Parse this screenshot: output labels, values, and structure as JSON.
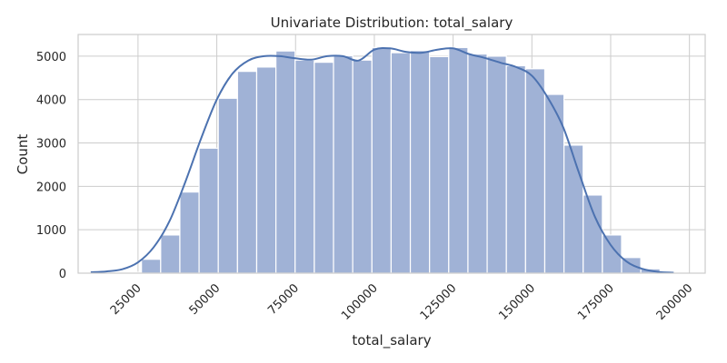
{
  "chart_data": {
    "type": "histogram",
    "title": "Univariate Distribution: total_salary",
    "xlabel": "total_salary",
    "ylabel": "Count",
    "xlim": [
      6000,
      205000
    ],
    "ylim": [
      0,
      5500
    ],
    "xticks": [
      25000,
      50000,
      75000,
      100000,
      125000,
      150000,
      175000,
      200000
    ],
    "xtick_labels": [
      "25000",
      "50000",
      "75000",
      "100000",
      "125000",
      "150000",
      "175000",
      "200000"
    ],
    "yticks": [
      0,
      1000,
      2000,
      3000,
      4000,
      5000
    ],
    "ytick_labels": [
      "0",
      "1000",
      "2000",
      "3000",
      "4000",
      "5000"
    ],
    "grid": true,
    "bar_color": "#a0b2d6",
    "line_color": "#4c72b0",
    "bins": {
      "edges": [
        20000,
        26095,
        32190,
        38285,
        44380,
        50475,
        56570,
        62665,
        68760,
        74855,
        80950,
        87045,
        93140,
        99235,
        105330,
        111425,
        117520,
        123615,
        129710,
        135805,
        141900,
        147995,
        154090,
        160185,
        166280,
        172375,
        178470,
        184565,
        190660
      ],
      "counts": [
        20,
        320,
        880,
        1870,
        2880,
        4030,
        4650,
        4750,
        5120,
        4910,
        4860,
        5010,
        4910,
        5200,
        5080,
        5130,
        4990,
        5200,
        5050,
        5000,
        4780,
        4710,
        4120,
        2950,
        1800,
        880,
        360,
        100
      ]
    },
    "kde": {
      "x": [
        10000,
        15000,
        20000,
        25000,
        30000,
        35000,
        40000,
        45000,
        50000,
        55000,
        60000,
        65000,
        70000,
        75000,
        80000,
        85000,
        90000,
        95000,
        100000,
        105000,
        110000,
        115000,
        120000,
        125000,
        130000,
        135000,
        140000,
        145000,
        150000,
        155000,
        160000,
        165000,
        170000,
        175000,
        180000,
        185000,
        190000,
        195000
      ],
      "y": [
        20,
        40,
        90,
        250,
        600,
        1200,
        2100,
        3100,
        4000,
        4600,
        4900,
        5000,
        5000,
        4950,
        4920,
        5000,
        5000,
        4900,
        5150,
        5180,
        5100,
        5080,
        5150,
        5180,
        5050,
        4960,
        4850,
        4750,
        4550,
        4050,
        3350,
        2300,
        1300,
        650,
        270,
        100,
        30,
        10
      ]
    }
  }
}
